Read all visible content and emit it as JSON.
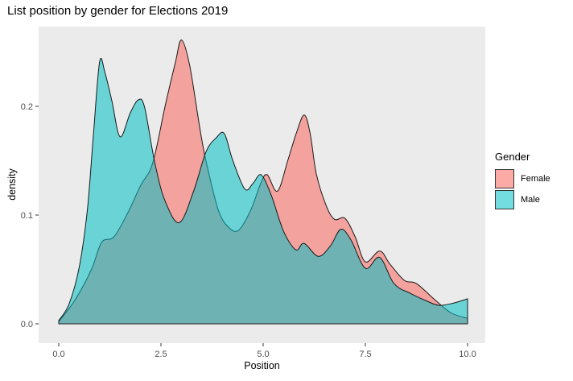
{
  "chart_data": {
    "type": "area",
    "title": "List position by gender for Elections 2019",
    "xlabel": "Position",
    "ylabel": "density",
    "xlim": [
      0,
      10
    ],
    "ylim": [
      0,
      0.27
    ],
    "x_ticks": [
      0.0,
      2.5,
      5.0,
      7.5,
      10.0
    ],
    "x_tick_labels": [
      "0.0",
      "2.5",
      "5.0",
      "7.5",
      "10.0"
    ],
    "y_ticks": [
      0.0,
      0.1,
      0.2
    ],
    "y_tick_labels": [
      "0.0",
      "0.1",
      "0.2"
    ],
    "grid": false,
    "panel_background": "#EBEBEB",
    "legend": {
      "title": "Gender",
      "position": "right",
      "entries": [
        {
          "label": "Female",
          "color": "#F8766D",
          "fill_alpha": 0.62
        },
        {
          "label": "Male",
          "color": "#00BFC4",
          "fill_alpha": 0.55
        }
      ]
    },
    "series": [
      {
        "name": "Female",
        "color": "#F8766D",
        "fill_alpha": 0.62,
        "outline_color": "#1a1a1a",
        "points": [
          [
            0,
            0.002
          ],
          [
            0.4,
            0.022
          ],
          [
            0.8,
            0.05
          ],
          [
            1.05,
            0.075
          ],
          [
            1.35,
            0.08
          ],
          [
            1.7,
            0.103
          ],
          [
            2.0,
            0.127
          ],
          [
            2.3,
            0.148
          ],
          [
            2.6,
            0.2
          ],
          [
            2.85,
            0.24
          ],
          [
            3.0,
            0.261
          ],
          [
            3.2,
            0.238
          ],
          [
            3.45,
            0.18
          ],
          [
            3.6,
            0.15
          ],
          [
            3.9,
            0.105
          ],
          [
            4.15,
            0.089
          ],
          [
            4.4,
            0.086
          ],
          [
            4.7,
            0.105
          ],
          [
            4.95,
            0.13
          ],
          [
            5.1,
            0.137
          ],
          [
            5.35,
            0.122
          ],
          [
            5.6,
            0.15
          ],
          [
            5.8,
            0.174
          ],
          [
            6.0,
            0.192
          ],
          [
            6.15,
            0.175
          ],
          [
            6.3,
            0.138
          ],
          [
            6.55,
            0.108
          ],
          [
            6.75,
            0.096
          ],
          [
            7.0,
            0.097
          ],
          [
            7.25,
            0.08
          ],
          [
            7.5,
            0.057
          ],
          [
            7.85,
            0.067
          ],
          [
            8.1,
            0.055
          ],
          [
            8.45,
            0.04
          ],
          [
            8.75,
            0.037
          ],
          [
            9.2,
            0.022
          ],
          [
            9.6,
            0.01
          ],
          [
            10,
            0.005
          ]
        ]
      },
      {
        "name": "Male",
        "color": "#00BFC4",
        "fill_alpha": 0.55,
        "outline_color": "#1a1a1a",
        "points": [
          [
            0,
            0.003
          ],
          [
            0.25,
            0.018
          ],
          [
            0.5,
            0.052
          ],
          [
            0.7,
            0.105
          ],
          [
            0.85,
            0.175
          ],
          [
            1.0,
            0.241
          ],
          [
            1.13,
            0.231
          ],
          [
            1.3,
            0.205
          ],
          [
            1.5,
            0.172
          ],
          [
            1.75,
            0.194
          ],
          [
            1.95,
            0.206
          ],
          [
            2.1,
            0.199
          ],
          [
            2.35,
            0.148
          ],
          [
            2.6,
            0.113
          ],
          [
            2.95,
            0.093
          ],
          [
            3.3,
            0.122
          ],
          [
            3.6,
            0.158
          ],
          [
            3.85,
            0.171
          ],
          [
            4.05,
            0.175
          ],
          [
            4.25,
            0.151
          ],
          [
            4.55,
            0.124
          ],
          [
            4.75,
            0.129
          ],
          [
            4.95,
            0.137
          ],
          [
            5.2,
            0.118
          ],
          [
            5.5,
            0.085
          ],
          [
            5.8,
            0.068
          ],
          [
            6.0,
            0.074
          ],
          [
            6.35,
            0.062
          ],
          [
            6.65,
            0.072
          ],
          [
            6.9,
            0.087
          ],
          [
            7.15,
            0.077
          ],
          [
            7.5,
            0.051
          ],
          [
            7.85,
            0.061
          ],
          [
            8.2,
            0.037
          ],
          [
            8.6,
            0.028
          ],
          [
            9.0,
            0.021
          ],
          [
            9.3,
            0.017
          ],
          [
            9.65,
            0.019
          ],
          [
            10,
            0.023
          ]
        ]
      }
    ]
  }
}
